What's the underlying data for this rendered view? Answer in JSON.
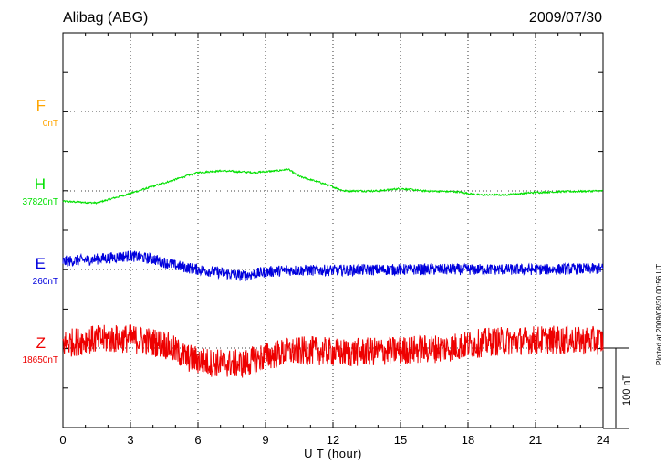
{
  "header": {
    "station": "Alibag (ABG)",
    "date": "2009/07/30"
  },
  "side_note": "Plotted at 2009/08/30 00:56 UT",
  "scale_label": "100 nT",
  "chart_data": {
    "type": "line",
    "title": "Alibag (ABG)",
    "date": "2009/07/30",
    "xlabel": "U T (hour)",
    "ylabel": "",
    "xlim": [
      0,
      24
    ],
    "x_ticks": [
      0,
      3,
      6,
      9,
      12,
      15,
      18,
      21,
      24
    ],
    "tick_labels": [
      "0",
      "3",
      "6",
      "9",
      "12",
      "15",
      "18",
      "21",
      "24"
    ],
    "scale_bar_nT": 100,
    "series": [
      {
        "name": "F",
        "baseline_label": "0nT",
        "baseline_nT": 0,
        "color": "#ffa500",
        "noise_nT": 0,
        "x": [],
        "deviation_nT": []
      },
      {
        "name": "H",
        "baseline_label": "37820nT",
        "baseline_nT": 37820,
        "color": "#00e000",
        "noise_nT": 1.5,
        "x": [
          0,
          1.5,
          3,
          4.5,
          6,
          7,
          8.5,
          9.5,
          10,
          10.5,
          11.5,
          12.5,
          14,
          15,
          16,
          17.5,
          18.5,
          19.5,
          21,
          22,
          24
        ],
        "deviation_nT": [
          -13,
          -15,
          -3,
          10,
          23,
          25,
          23,
          25,
          27,
          18,
          10,
          0,
          0,
          3,
          0,
          -1,
          -5,
          -5,
          -2,
          -1,
          0
        ]
      },
      {
        "name": "E",
        "baseline_label": "260nT",
        "baseline_nT": 260,
        "color": "#0000dd",
        "noise_nT": 7,
        "x": [
          0,
          1.5,
          3,
          4,
          5,
          6,
          7,
          8,
          9,
          10,
          12,
          15,
          18,
          21,
          24
        ],
        "deviation_nT": [
          10,
          13,
          17,
          13,
          5,
          0,
          -4,
          -8,
          -3,
          -1,
          -1,
          0,
          0,
          0,
          1
        ]
      },
      {
        "name": "Z",
        "baseline_label": "18650nT",
        "baseline_nT": 18650,
        "color": "#ee0000",
        "noise_nT": 18,
        "x": [
          0,
          1,
          3,
          4.5,
          5.5,
          6.5,
          8,
          9,
          10,
          11,
          12.5,
          15,
          17,
          19,
          21,
          22.5,
          24
        ],
        "deviation_nT": [
          5,
          10,
          12,
          5,
          -12,
          -18,
          -20,
          -10,
          -5,
          -3,
          -6,
          -3,
          0,
          8,
          10,
          10,
          9
        ]
      }
    ]
  }
}
